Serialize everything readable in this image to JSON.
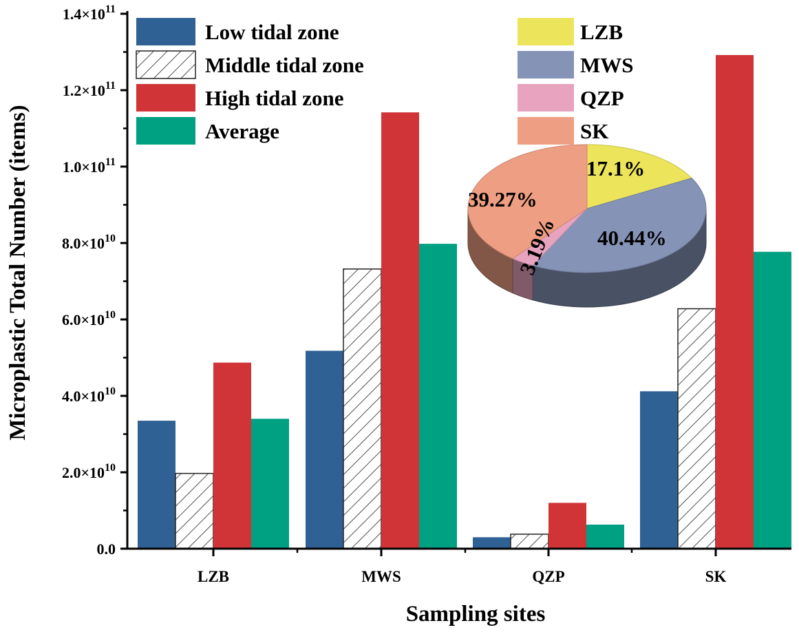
{
  "chart_data": [
    {
      "type": "bar",
      "title": "",
      "xlabel": "Sampling sites",
      "ylabel": "Microplastic Total Number (items)",
      "ylim": [
        0,
        140000000000
      ],
      "categories": [
        "LZB",
        "MWS",
        "QZP",
        "SK"
      ],
      "yticks": [
        {
          "value": 0,
          "label": "0.0"
        },
        {
          "value": 20000000000,
          "mant": "2.0",
          "exp": "10"
        },
        {
          "value": 40000000000,
          "mant": "4.0",
          "exp": "10"
        },
        {
          "value": 60000000000,
          "mant": "6.0",
          "exp": "10"
        },
        {
          "value": 80000000000,
          "mant": "8.0",
          "exp": "10"
        },
        {
          "value": 100000000000,
          "mant": "1.0",
          "exp": "11"
        },
        {
          "value": 120000000000,
          "mant": "1.2",
          "exp": "11"
        },
        {
          "value": 140000000000,
          "mant": "1.4",
          "exp": "11"
        }
      ],
      "times_symbol": "×",
      "series": [
        {
          "name": "Low tidal zone",
          "color": "#2f6194",
          "pattern": "solid",
          "values": [
            33500000000,
            51800000000,
            3000000000,
            41200000000
          ]
        },
        {
          "name": "Middle tidal zone",
          "color": "#ffffff",
          "pattern": "hatch",
          "values": [
            19700000000,
            73200000000,
            3800000000,
            62800000000
          ]
        },
        {
          "name": "High tidal zone",
          "color": "#d13437",
          "pattern": "solid",
          "values": [
            48700000000,
            114200000000,
            12000000000,
            129200000000
          ]
        },
        {
          "name": "Average",
          "color": "#00a082",
          "pattern": "solid",
          "values": [
            34000000000,
            79800000000,
            6300000000,
            77700000000
          ]
        }
      ],
      "legend_position": "top-left"
    },
    {
      "type": "pie",
      "style": "3d",
      "legend_position": "top-right",
      "slices": [
        {
          "label": "LZB",
          "percent": 17.1,
          "text": "17.1%",
          "color": "#ece45a"
        },
        {
          "label": "MWS",
          "percent": 40.44,
          "text": "40.44%",
          "color": "#8593b7"
        },
        {
          "label": "QZP",
          "percent": 3.19,
          "text": "3.19%",
          "color": "#e8a3bf"
        },
        {
          "label": "SK",
          "percent": 39.27,
          "text": "39.27%",
          "color": "#ee9e82"
        }
      ]
    }
  ]
}
